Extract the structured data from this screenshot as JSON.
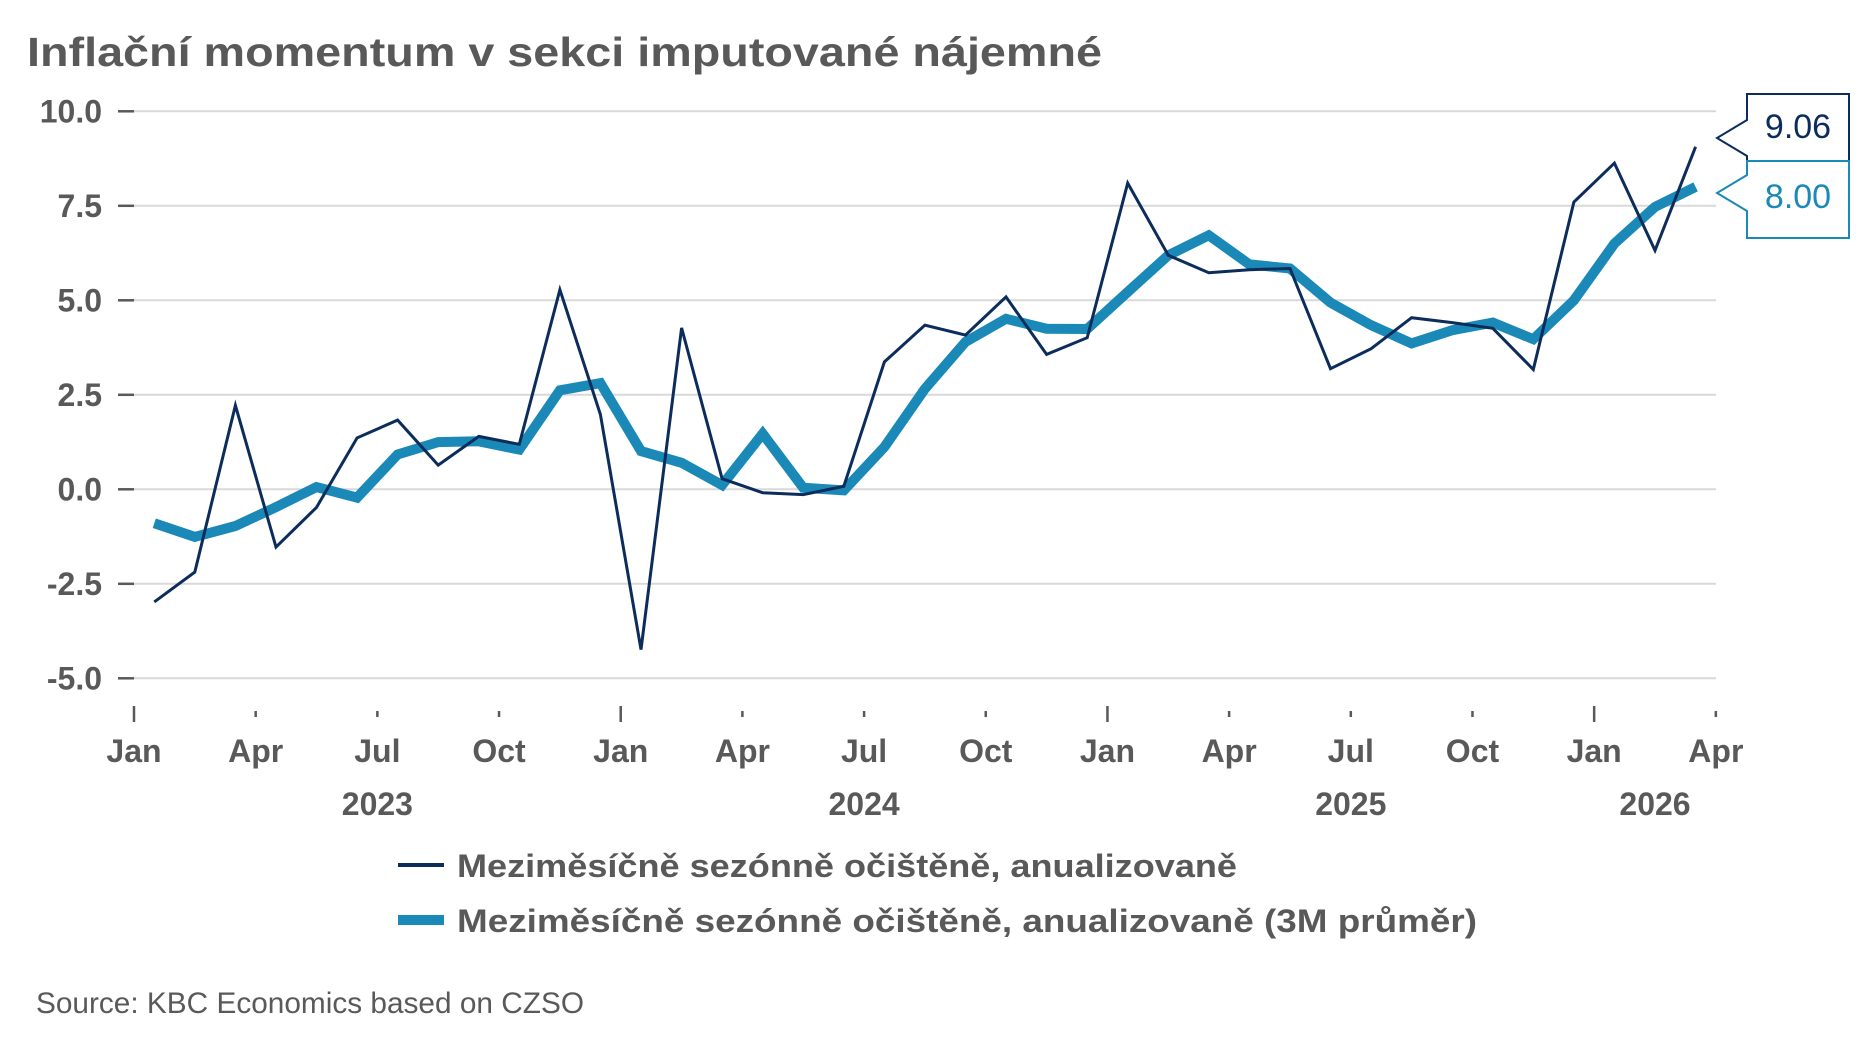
{
  "chart_data": {
    "type": "line",
    "title": "Inflační momentum v sekci imputované nájemné",
    "xlabel": "",
    "ylabel": "",
    "ylim": [
      -5.0,
      10.0
    ],
    "yticks": [
      "10.0",
      "7.5",
      "5.0",
      "2.5",
      "0.0",
      "-2.5",
      "-5.0"
    ],
    "ytick_values": [
      10.0,
      7.5,
      5.0,
      2.5,
      0.0,
      -2.5,
      -5.0
    ],
    "grid": true,
    "legend_position": "bottom",
    "x_start": "2023-01",
    "x_end_tick": "2026-04",
    "x": [
      "2023-01",
      "2023-02",
      "2023-03",
      "2023-04",
      "2023-05",
      "2023-06",
      "2023-07",
      "2023-08",
      "2023-09",
      "2023-10",
      "2023-11",
      "2023-12",
      "2024-01",
      "2024-02",
      "2024-03",
      "2024-04",
      "2024-05",
      "2024-06",
      "2024-07",
      "2024-08",
      "2024-09",
      "2024-10",
      "2024-11",
      "2024-12",
      "2025-01",
      "2025-02",
      "2025-03",
      "2025-04",
      "2025-05",
      "2025-06",
      "2025-07",
      "2025-08",
      "2025-09",
      "2025-10",
      "2025-11",
      "2025-12",
      "2026-01",
      "2026-02",
      "2026-03"
    ],
    "month_ticks": [
      {
        "label": "Jan",
        "month_index": 0,
        "major": true
      },
      {
        "label": "Apr",
        "month_index": 3,
        "major": false
      },
      {
        "label": "Jul",
        "month_index": 6,
        "major": false
      },
      {
        "label": "Oct",
        "month_index": 9,
        "major": false
      },
      {
        "label": "Jan",
        "month_index": 12,
        "major": true
      },
      {
        "label": "Apr",
        "month_index": 15,
        "major": false
      },
      {
        "label": "Jul",
        "month_index": 18,
        "major": false
      },
      {
        "label": "Oct",
        "month_index": 21,
        "major": false
      },
      {
        "label": "Jan",
        "month_index": 24,
        "major": true
      },
      {
        "label": "Apr",
        "month_index": 27,
        "major": false
      },
      {
        "label": "Jul",
        "month_index": 30,
        "major": false
      },
      {
        "label": "Oct",
        "month_index": 33,
        "major": false
      },
      {
        "label": "Jan",
        "month_index": 36,
        "major": true
      },
      {
        "label": "Apr",
        "month_index": 39,
        "major": false
      }
    ],
    "year_labels": [
      {
        "label": "2023",
        "from_month": 0,
        "to_month": 12
      },
      {
        "label": "2024",
        "from_month": 12,
        "to_month": 24
      },
      {
        "label": "2025",
        "from_month": 24,
        "to_month": 36
      },
      {
        "label": "2026",
        "from_month": 36,
        "to_month": 39
      }
    ],
    "series": [
      {
        "name": "Meziměsíčně sezónně očištěně, anualizovaně",
        "color": "#0c2d5b",
        "style": "thin",
        "values": [
          -2.98,
          -2.19,
          2.22,
          -1.53,
          -0.48,
          1.36,
          1.83,
          0.64,
          1.4,
          1.19,
          5.28,
          1.98,
          -4.24,
          4.27,
          0.28,
          -0.09,
          -0.14,
          0.08,
          3.37,
          4.34,
          4.08,
          5.09,
          3.57,
          4.01,
          8.1,
          6.19,
          5.73,
          5.81,
          5.84,
          3.19,
          3.72,
          4.54,
          4.41,
          4.26,
          3.17,
          7.6,
          8.63,
          6.32,
          9.06
        ],
        "last_value_label": "9.06"
      },
      {
        "name": "Meziměsíčně sezónně očištěně, anualizovaně (3M průměr)",
        "color": "#1b89b8",
        "style": "thick",
        "values": [
          -0.9,
          -1.26,
          -0.97,
          -0.47,
          0.06,
          -0.22,
          0.92,
          1.25,
          1.27,
          1.05,
          2.62,
          2.81,
          1.01,
          0.7,
          0.11,
          1.47,
          0.04,
          -0.03,
          1.12,
          2.66,
          3.9,
          4.51,
          4.25,
          4.24,
          5.22,
          6.19,
          6.72,
          5.95,
          5.84,
          4.94,
          4.34,
          3.86,
          4.21,
          4.41,
          3.97,
          5.0,
          6.5,
          7.47,
          8.0
        ],
        "last_value_label": "8.00"
      }
    ]
  },
  "source": "Source: KBC Economics based on CZSO",
  "colors": {
    "text": "#595959",
    "grid": "#d9d9d9"
  }
}
